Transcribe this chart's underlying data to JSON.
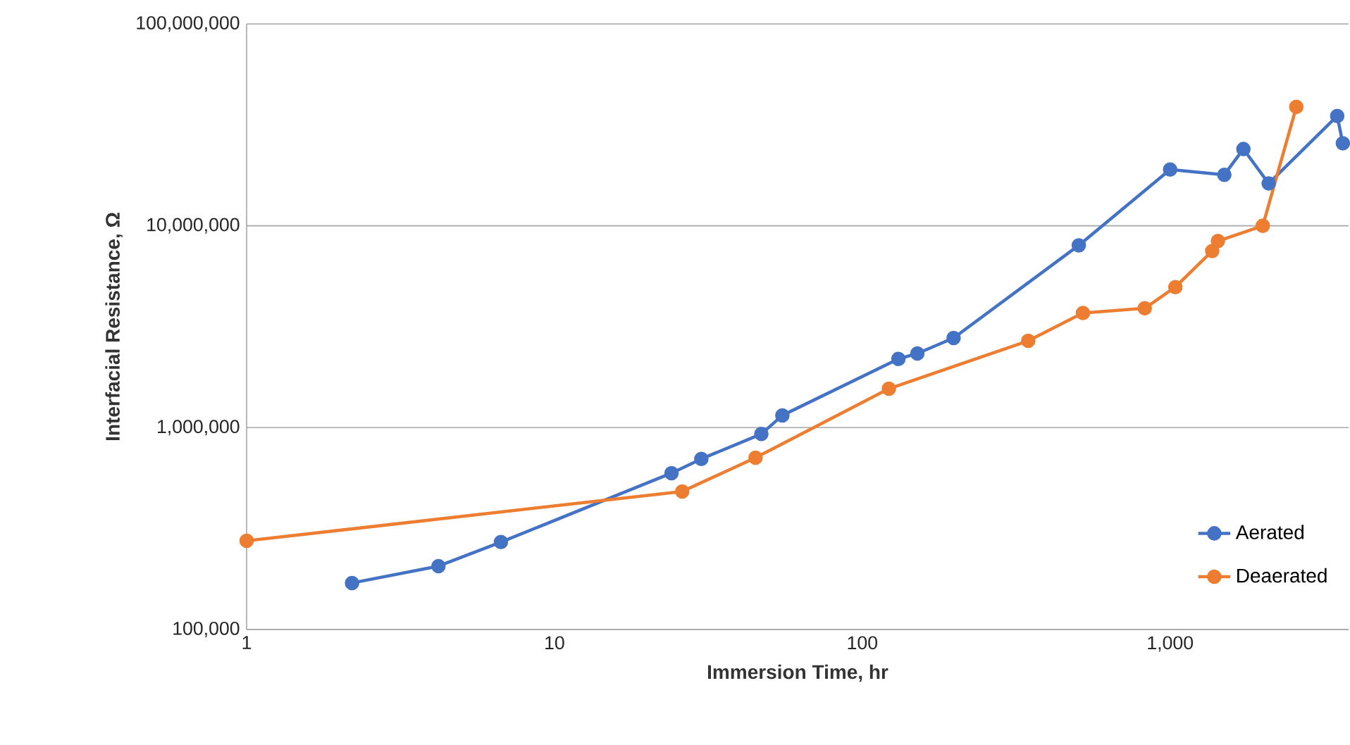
{
  "chart_data": {
    "type": "line",
    "xlabel": "Immersion Time, hr",
    "ylabel": "Interfacial Resistance, Ω",
    "log": "xy",
    "grid": "y",
    "legend": "bottom right",
    "marker": "circle",
    "line_style": "solid",
    "xlim": [
      1,
      3800
    ],
    "ylim": [
      100000,
      100000000
    ],
    "xticks": [
      1,
      10,
      100,
      {
        "value": 1000,
        "label": "1,000"
      }
    ],
    "yticks": [
      {
        "value": 100000,
        "label": "100,000"
      },
      {
        "value": 1000000,
        "label": "1,000,000"
      },
      {
        "value": 10000000,
        "label": "10,000,000"
      },
      {
        "value": 100000000,
        "label": "100,000,000"
      }
    ],
    "series": [
      {
        "name": "Aerated",
        "color": "#4472c4",
        "x": [
          2.2,
          4.2,
          6.7,
          24,
          30,
          47,
          55,
          131,
          151,
          198,
          505,
          1000,
          1500,
          1730,
          2090,
          3490,
          3640
        ],
        "values": [
          170000,
          206000,
          271000,
          595000,
          700000,
          930000,
          1150000,
          2190000,
          2330000,
          2780000,
          8000000,
          19000000,
          17900000,
          24000000,
          16200000,
          35000000,
          25600000
        ]
      },
      {
        "name": "Deaerated",
        "color": "#ed7d31",
        "x": [
          1,
          26,
          45,
          122,
          346,
          521,
          827,
          1040,
          1370,
          1430,
          2000,
          2570
        ],
        "values": [
          275000,
          483000,
          710000,
          1560000,
          2690000,
          3700000,
          3900000,
          4970000,
          7500000,
          8400000,
          10000000,
          38800000
        ]
      }
    ]
  }
}
